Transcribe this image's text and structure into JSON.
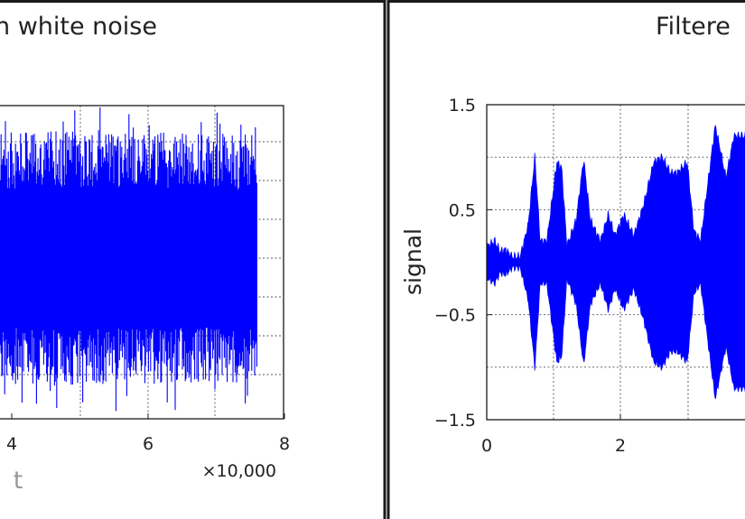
{
  "chart_data": [
    {
      "type": "line",
      "title": "n white noise",
      "xlabel": "t",
      "ylabel": "",
      "x_multiplier_label": "×10,000",
      "x_ticks": [
        4,
        6,
        8
      ],
      "x_tick_labels": [
        "4",
        "6",
        "8"
      ],
      "xlim": [
        2,
        8
      ],
      "grid": true,
      "series": [
        {
          "color": "#0000ff",
          "x_start": 2,
          "x_end": 7.6,
          "amplitude_envelope": [
            [
              2.0,
              0.78
            ],
            [
              3.0,
              0.8
            ],
            [
              4.0,
              0.82
            ],
            [
              5.0,
              0.84
            ],
            [
              6.0,
              0.83
            ],
            [
              7.0,
              0.82
            ],
            [
              7.6,
              0.8
            ]
          ],
          "peak_extent": 1.0
        }
      ]
    },
    {
      "type": "line",
      "title": "Filtere",
      "xlabel": "",
      "ylabel": "signal",
      "x_ticks": [
        0,
        2
      ],
      "x_tick_labels": [
        "0",
        "2"
      ],
      "y_ticks": [
        1.5,
        0.5,
        -0.5,
        -1.5
      ],
      "y_tick_labels": [
        "1.5",
        "0.5",
        "−0.5",
        "−1.5"
      ],
      "ylim": [
        -1.5,
        1.5
      ],
      "grid": true,
      "series": [
        {
          "color": "#0000ff",
          "x_start": 0,
          "amplitude_envelope": [
            [
              0.0,
              0.15
            ],
            [
              0.12,
              0.2
            ],
            [
              0.2,
              0.1
            ],
            [
              0.28,
              0.12
            ],
            [
              0.38,
              0.05
            ],
            [
              0.5,
              0.05
            ],
            [
              0.62,
              0.35
            ],
            [
              0.72,
              1.0
            ],
            [
              0.8,
              0.2
            ],
            [
              0.9,
              0.2
            ],
            [
              1.05,
              0.95
            ],
            [
              1.12,
              0.9
            ],
            [
              1.2,
              0.15
            ],
            [
              1.34,
              0.4
            ],
            [
              1.45,
              0.98
            ],
            [
              1.55,
              0.4
            ],
            [
              1.7,
              0.2
            ],
            [
              1.82,
              0.45
            ],
            [
              1.92,
              0.25
            ],
            [
              2.05,
              0.45
            ],
            [
              2.2,
              0.25
            ],
            [
              2.35,
              0.55
            ],
            [
              2.5,
              0.95
            ],
            [
              2.62,
              1.0
            ],
            [
              2.75,
              0.85
            ],
            [
              2.85,
              0.85
            ],
            [
              3.0,
              0.95
            ],
            [
              3.1,
              0.3
            ],
            [
              3.2,
              0.2
            ],
            [
              3.42,
              1.3
            ],
            [
              3.5,
              1.05
            ],
            [
              3.58,
              0.8
            ],
            [
              3.7,
              1.2
            ],
            [
              3.85,
              1.2
            ]
          ]
        }
      ]
    }
  ]
}
